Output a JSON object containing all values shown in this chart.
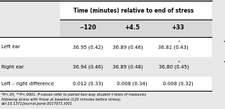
{
  "title": "Time (minutes) relative to end of stress",
  "col_headers": [
    "−120",
    "+4.5",
    "+33"
  ],
  "row_headers": [
    "Left ear",
    "Right ear",
    "Left – right difference"
  ],
  "cells": [
    [
      "36.95 (0.42)",
      "36.89 (0.46)*",
      "36.81 (0.43)**"
    ],
    [
      "36.94 (0.46)",
      "36.89 (0.48)*",
      "36.80 (0.45)**"
    ],
    [
      "0.012 (0.33)",
      "0.008 (0.34)",
      "0.008 (0.32)"
    ]
  ],
  "footnote": "*P<.05, **P<.0001. P-values refer to paired two-way student t-tests of measures\nfollowing stress with those at baseline (120 minutes before stress).\ndoi:10.1371/journal.pone.0017071.t001",
  "fig_bg": "#e8e8e8"
}
